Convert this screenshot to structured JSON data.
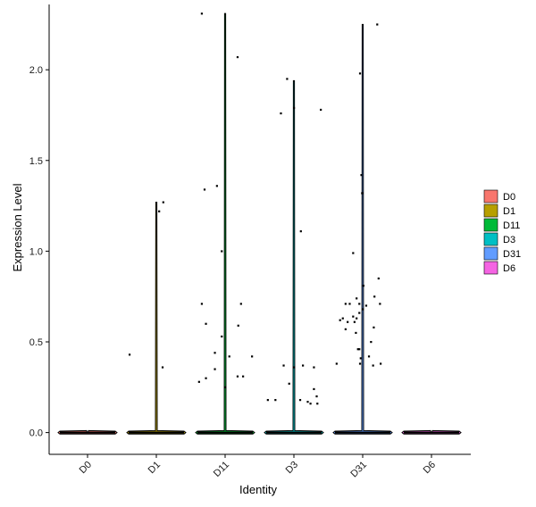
{
  "chart_data": {
    "type": "violin",
    "xlabel": "Identity",
    "ylabel": "Expression Level",
    "categories": [
      "D0",
      "D1",
      "D11",
      "D3",
      "D31",
      "D6"
    ],
    "colors": {
      "D0": "#F8766D",
      "D1": "#B79F00",
      "D11": "#00BA38",
      "D3": "#00BFC4",
      "D31": "#619CFF",
      "D6": "#F564E3"
    },
    "ylim": [
      -0.12,
      2.36
    ],
    "yticks": [
      0.0,
      0.5,
      1.0,
      1.5,
      2.0
    ],
    "ytick_labels": [
      "0.0",
      "0.5",
      "1.0",
      "1.5",
      "2.0"
    ],
    "legend": {
      "position": "right",
      "entries": [
        "D0",
        "D1",
        "D11",
        "D3",
        "D31",
        "D6"
      ]
    },
    "grid": false,
    "violin_max": {
      "D0": 0.0,
      "D1": 1.27,
      "D11": 2.31,
      "D3": 1.94,
      "D31": 2.25,
      "D6": 0.0
    },
    "points": {
      "D0": [],
      "D1": [
        {
          "x": -0.39,
          "y": 0.43
        },
        {
          "x": 0.04,
          "y": 1.22
        },
        {
          "x": 0.1,
          "y": 1.27
        },
        {
          "x": 0.09,
          "y": 0.36
        }
      ],
      "D11": [
        {
          "x": -0.34,
          "y": 2.31
        },
        {
          "x": -0.3,
          "y": 1.34
        },
        {
          "x": -0.12,
          "y": 1.36
        },
        {
          "x": 0.18,
          "y": 2.07
        },
        {
          "x": -0.34,
          "y": 0.71
        },
        {
          "x": -0.28,
          "y": 0.6
        },
        {
          "x": -0.05,
          "y": 1.0
        },
        {
          "x": 0.23,
          "y": 0.71
        },
        {
          "x": 0.19,
          "y": 0.59
        },
        {
          "x": -0.05,
          "y": 0.53
        },
        {
          "x": -0.15,
          "y": 0.44
        },
        {
          "x": 0.06,
          "y": 0.42
        },
        {
          "x": 0.39,
          "y": 0.42
        },
        {
          "x": -0.15,
          "y": 0.35
        },
        {
          "x": 0.18,
          "y": 0.31
        },
        {
          "x": 0.26,
          "y": 0.31
        },
        {
          "x": -0.28,
          "y": 0.3
        },
        {
          "x": -0.38,
          "y": 0.28
        },
        {
          "x": 0.0,
          "y": 0.25
        }
      ],
      "D3": [
        {
          "x": -0.1,
          "y": 1.95
        },
        {
          "x": 0.0,
          "y": 1.79
        },
        {
          "x": 0.39,
          "y": 1.78
        },
        {
          "x": -0.19,
          "y": 1.76
        },
        {
          "x": 0.1,
          "y": 1.11
        },
        {
          "x": -0.15,
          "y": 0.37
        },
        {
          "x": 0.0,
          "y": 0.36
        },
        {
          "x": 0.13,
          "y": 0.37
        },
        {
          "x": 0.29,
          "y": 0.36
        },
        {
          "x": -0.07,
          "y": 0.27
        },
        {
          "x": 0.29,
          "y": 0.24
        },
        {
          "x": 0.33,
          "y": 0.2
        },
        {
          "x": -0.38,
          "y": 0.18
        },
        {
          "x": -0.27,
          "y": 0.18
        },
        {
          "x": 0.09,
          "y": 0.18
        },
        {
          "x": 0.2,
          "y": 0.17
        },
        {
          "x": 0.34,
          "y": 0.16
        },
        {
          "x": 0.24,
          "y": 0.16
        }
      ],
      "D31": [
        {
          "x": 0.21,
          "y": 2.25
        },
        {
          "x": -0.04,
          "y": 1.98
        },
        {
          "x": -0.02,
          "y": 1.42
        },
        {
          "x": -0.01,
          "y": 1.32
        },
        {
          "x": -0.14,
          "y": 0.99
        },
        {
          "x": 0.23,
          "y": 0.85
        },
        {
          "x": 0.01,
          "y": 0.81
        },
        {
          "x": 0.17,
          "y": 0.75
        },
        {
          "x": 0.25,
          "y": 0.71
        },
        {
          "x": -0.09,
          "y": 0.74
        },
        {
          "x": -0.05,
          "y": 0.71
        },
        {
          "x": -0.25,
          "y": 0.71
        },
        {
          "x": -0.19,
          "y": 0.71
        },
        {
          "x": 0.05,
          "y": 0.7
        },
        {
          "x": 0.0,
          "y": 0.68
        },
        {
          "x": -0.05,
          "y": 0.66
        },
        {
          "x": -0.33,
          "y": 0.62
        },
        {
          "x": -0.29,
          "y": 0.63
        },
        {
          "x": -0.22,
          "y": 0.61
        },
        {
          "x": -0.09,
          "y": 0.63
        },
        {
          "x": -0.12,
          "y": 0.61
        },
        {
          "x": -0.14,
          "y": 0.64
        },
        {
          "x": -0.25,
          "y": 0.57
        },
        {
          "x": 0.16,
          "y": 0.58
        },
        {
          "x": -0.1,
          "y": 0.55
        },
        {
          "x": 0.12,
          "y": 0.5
        },
        {
          "x": -0.05,
          "y": 0.46
        },
        {
          "x": -0.07,
          "y": 0.46
        },
        {
          "x": -0.03,
          "y": 0.41
        },
        {
          "x": -0.04,
          "y": 0.38
        },
        {
          "x": 0.09,
          "y": 0.42
        },
        {
          "x": 0.15,
          "y": 0.37
        },
        {
          "x": 0.26,
          "y": 0.38
        },
        {
          "x": -0.38,
          "y": 0.38
        }
      ],
      "D6": []
    }
  }
}
